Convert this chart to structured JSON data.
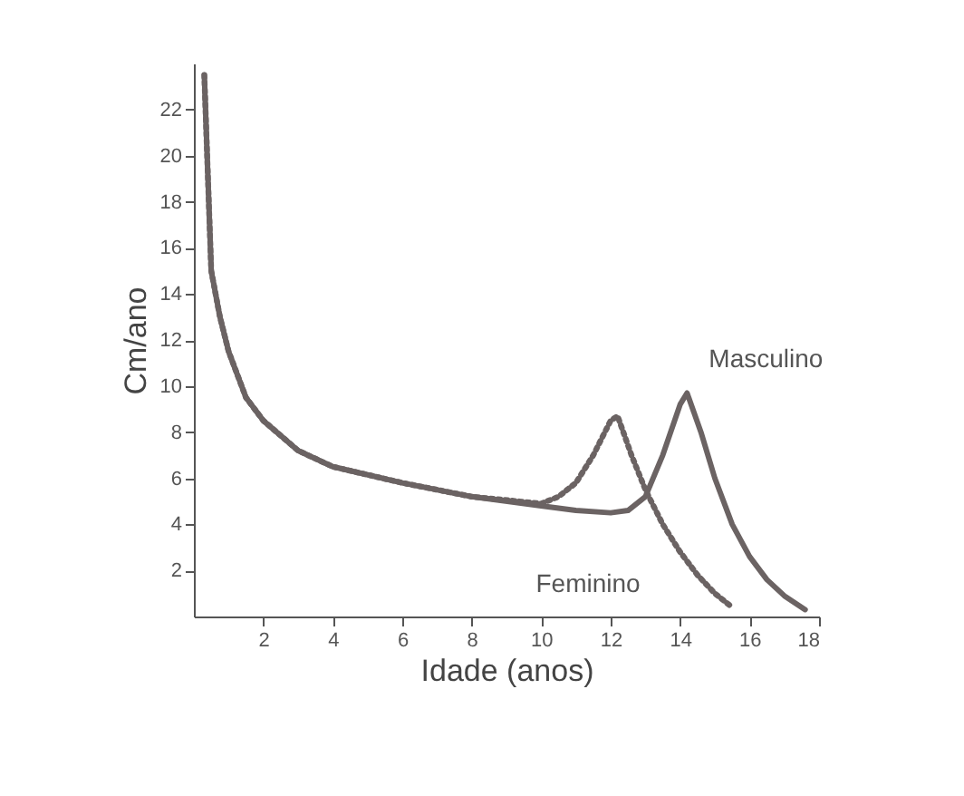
{
  "chart_data": {
    "type": "line",
    "xlabel": "Idade (anos)",
    "ylabel": "Cm/ano",
    "xlim": [
      0,
      18
    ],
    "xticks": [
      2,
      4,
      6,
      8,
      10,
      12,
      14,
      16,
      18
    ],
    "ylim": [
      0,
      24
    ],
    "yticks": [
      2,
      4,
      6,
      8,
      10,
      12,
      14,
      16,
      18,
      20,
      22
    ],
    "grid": false,
    "marker": "none",
    "series": [
      {
        "name": "Masculino",
        "color": "#6b6363",
        "line_style": "solid",
        "x": [
          0.3,
          0.5,
          0.75,
          1,
          1.5,
          2,
          3,
          4,
          6,
          8,
          10,
          11,
          12,
          12.5,
          13,
          13.5,
          14,
          14.2,
          14.6,
          15,
          15.5,
          16,
          16.5,
          17,
          17.6
        ],
        "values": [
          23.5,
          15,
          13,
          11.5,
          9.5,
          8.5,
          7.2,
          6.5,
          5.8,
          5.2,
          4.8,
          4.6,
          4.5,
          4.6,
          5.2,
          7,
          9.2,
          9.7,
          8,
          6,
          4,
          2.6,
          1.6,
          0.9,
          0.3
        ]
      },
      {
        "name": "Feminino",
        "color": "#6b6363",
        "line_style": "dotted",
        "x": [
          0.3,
          0.5,
          0.75,
          1,
          1.5,
          2,
          3,
          4,
          6,
          8,
          10,
          10.5,
          11,
          11.5,
          12,
          12.2,
          12.6,
          13,
          13.5,
          14,
          14.5,
          15,
          15.5
        ],
        "values": [
          23.5,
          15,
          13,
          11.5,
          9.5,
          8.5,
          7.2,
          6.5,
          5.8,
          5.2,
          4.9,
          5.2,
          5.8,
          7,
          8.5,
          8.7,
          7,
          5.5,
          4,
          2.8,
          1.8,
          1,
          0.4
        ]
      }
    ]
  }
}
